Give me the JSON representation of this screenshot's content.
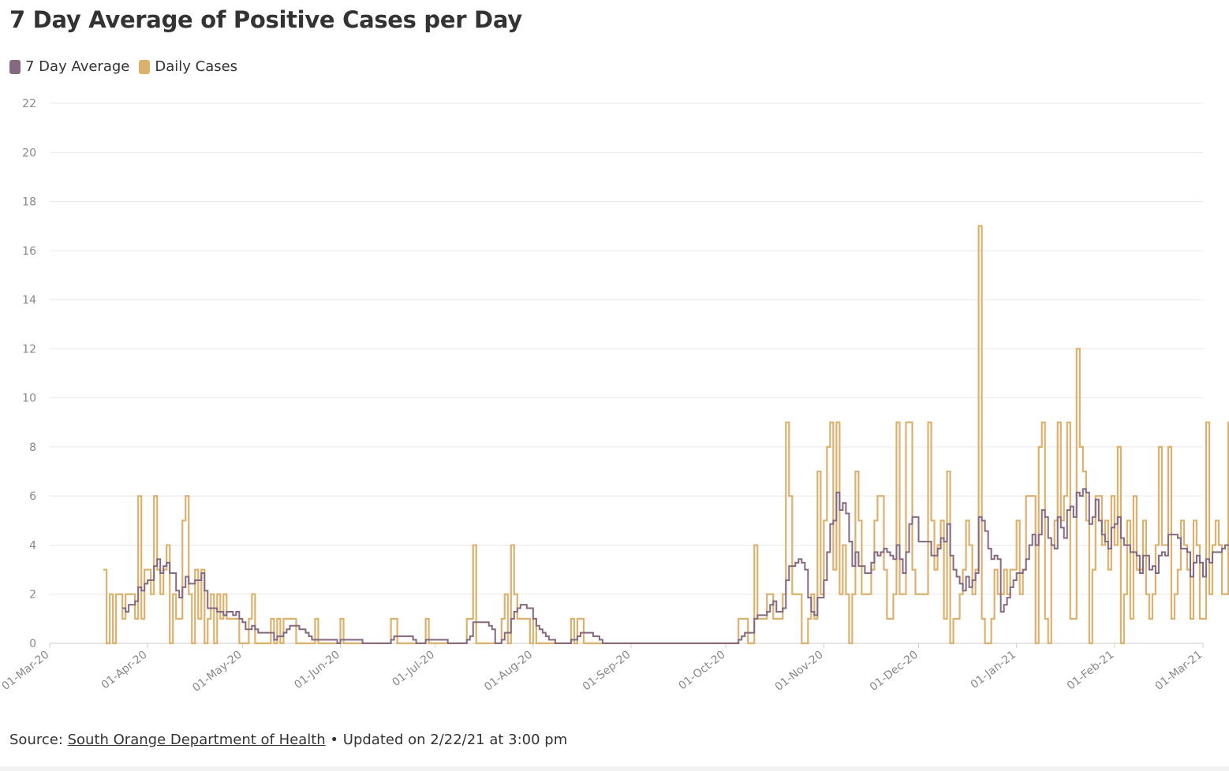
{
  "title": "7 Day Average of Positive Cases per Day",
  "legend": [
    {
      "label": "7 Day Average",
      "color": "#85697f"
    },
    {
      "label": "Daily Cases",
      "color": "#dcb16d"
    }
  ],
  "source": {
    "prefix": "Source: ",
    "link_text": "South Orange Department of Health",
    "suffix": " • Updated on 2/22/21 at 3:00 pm"
  },
  "chart_data": {
    "type": "line",
    "step": true,
    "title": "7 Day Average of Positive Cases per Day",
    "xlabel": "",
    "ylabel": "",
    "ylim": [
      0,
      22
    ],
    "yticks": [
      0,
      2,
      4,
      6,
      8,
      10,
      12,
      14,
      16,
      18,
      20,
      22
    ],
    "xlim": [
      "2020-03-01",
      "2021-03-01"
    ],
    "xticks": [
      {
        "date": "2020-03-01",
        "label": "01-Mar-20"
      },
      {
        "date": "2020-04-01",
        "label": "01-Apr-20"
      },
      {
        "date": "2020-05-01",
        "label": "01-May-20"
      },
      {
        "date": "2020-06-01",
        "label": "01-Jun-20"
      },
      {
        "date": "2020-07-01",
        "label": "01-Jul-20"
      },
      {
        "date": "2020-08-01",
        "label": "01-Aug-20"
      },
      {
        "date": "2020-09-01",
        "label": "01-Sep-20"
      },
      {
        "date": "2020-10-01",
        "label": "01-Oct-20"
      },
      {
        "date": "2020-11-01",
        "label": "01-Nov-20"
      },
      {
        "date": "2020-12-01",
        "label": "01-Dec-20"
      },
      {
        "date": "2021-01-01",
        "label": "01-Jan-21"
      },
      {
        "date": "2021-02-01",
        "label": "01-Feb-21"
      },
      {
        "date": "2021-03-01",
        "label": "01-Mar-21"
      }
    ],
    "grid": true,
    "legend_position": "top-left",
    "series": [
      {
        "name": "Daily Cases",
        "color": "#dcb16d",
        "start_date": "2020-03-18",
        "values": [
          3,
          0,
          2,
          0,
          2,
          2,
          1,
          2,
          2,
          2,
          1,
          6,
          1,
          3,
          3,
          2,
          6,
          3,
          2,
          3,
          4,
          0,
          2,
          1,
          1,
          5,
          6,
          2,
          0,
          3,
          1,
          3,
          0,
          1,
          2,
          0,
          2,
          1,
          2,
          1,
          1,
          1,
          1,
          0,
          0,
          0,
          1,
          2,
          0,
          0,
          0,
          0,
          0,
          1,
          0,
          1,
          0,
          1,
          1,
          1,
          1,
          0,
          0,
          0,
          0,
          0,
          0,
          1,
          0,
          0,
          0,
          0,
          0,
          0,
          0,
          1,
          0,
          0,
          0,
          0,
          0,
          0,
          0,
          0,
          0,
          0,
          0,
          0,
          0,
          0,
          0,
          1,
          1,
          0,
          0,
          0,
          0,
          0,
          0,
          0,
          0,
          0,
          1,
          0,
          0,
          0,
          0,
          0,
          0,
          0,
          0,
          0,
          0,
          0,
          0,
          1,
          1,
          4,
          0,
          0,
          0,
          0,
          0,
          0,
          0,
          0,
          1,
          2,
          0,
          4,
          2,
          1,
          1,
          1,
          1,
          0,
          1,
          0,
          0,
          0,
          0,
          0,
          0,
          0,
          0,
          0,
          0,
          0,
          1,
          0,
          1,
          1,
          0,
          0,
          0,
          0,
          0,
          0,
          0,
          0,
          0,
          0,
          0,
          0,
          0,
          0,
          0,
          0,
          0,
          0,
          0,
          0,
          0,
          0,
          0,
          0,
          0,
          0,
          0,
          0,
          0,
          0,
          0,
          0,
          0,
          0,
          0,
          0,
          0,
          0,
          0,
          0,
          0,
          0,
          0,
          0,
          0,
          0,
          0,
          0,
          0,
          1,
          1,
          1,
          0,
          0,
          4,
          1,
          1,
          1,
          2,
          2,
          1,
          1,
          1,
          2,
          9,
          6,
          2,
          2,
          2,
          0,
          0,
          1,
          2,
          1,
          7,
          2,
          5,
          8,
          9,
          3,
          9,
          2,
          4,
          2,
          0,
          2,
          7,
          5,
          2,
          2,
          2,
          3,
          5,
          6,
          6,
          3,
          1,
          1,
          2,
          9,
          2,
          2,
          9,
          9,
          3,
          2,
          2,
          2,
          2,
          9,
          5,
          3,
          4,
          5,
          1,
          7,
          0,
          1,
          1,
          2,
          3,
          5,
          4,
          2,
          3,
          17,
          1,
          0,
          0,
          1,
          3,
          2,
          2,
          3,
          2,
          3,
          3,
          5,
          2,
          3,
          6,
          6,
          6,
          0,
          8,
          9,
          1,
          0,
          4,
          5,
          9,
          5,
          6,
          9,
          1,
          1,
          12,
          8,
          7,
          5,
          0,
          3,
          6,
          6,
          4,
          5,
          3,
          6,
          4,
          8,
          0,
          2,
          5,
          1,
          6,
          3,
          3,
          5,
          2,
          1,
          2,
          4,
          8,
          4,
          4,
          8,
          1,
          2,
          3,
          5,
          4,
          3,
          1,
          5,
          4,
          1,
          1,
          9,
          2,
          4,
          5,
          4,
          2,
          2,
          9,
          3,
          2
        ],
        "values_note": ""
      },
      {
        "name": "7 Day Average",
        "color": "#85697f",
        "start_date": "2020-03-24",
        "values": []
      }
    ]
  }
}
